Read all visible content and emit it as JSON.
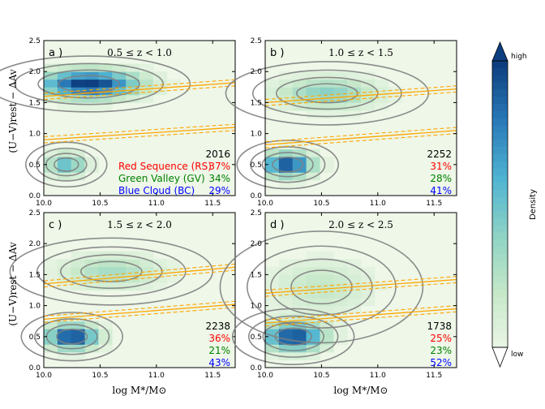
{
  "figure": {
    "ylabel": "(U−V)rest − ΔAv",
    "xlabel": "log M*/M⊙",
    "colorbar": {
      "label": "Density",
      "high": "high",
      "low": "low"
    },
    "colors": {
      "rs": "#ff0000",
      "gv": "#008000",
      "bc": "#0000ff",
      "contour": "#808080",
      "fit": "#ffa500",
      "background": "#eef7e8"
    }
  },
  "chart_data": [
    {
      "type": "heatmap",
      "panel": "a )",
      "title": "0.5 ≤ z < 1.0",
      "xlim": [
        10.0,
        11.7
      ],
      "ylim": [
        0.0,
        2.5
      ],
      "xticks": [
        "10.0",
        "10.5",
        "11.0",
        "11.5"
      ],
      "yticks": [
        "0.0",
        "0.5",
        "1.0",
        "1.5",
        "2.0",
        "2.5"
      ],
      "total": "2016",
      "legend": [
        {
          "label": "Red Sequence (RS)",
          "pct": "37%",
          "group": "rs"
        },
        {
          "label": "Green Valley (GV)",
          "pct": "34%",
          "group": "gv"
        },
        {
          "label": "Blue Cloud (BC)",
          "pct": "29%",
          "group": "bc"
        }
      ],
      "boundaries": {
        "upper": {
          "y0": 1.6,
          "y1": 1.82
        },
        "lower": {
          "y0": 0.9,
          "y1": 1.1
        }
      },
      "blobs": [
        {
          "x": 10.4,
          "y": 1.8,
          "sx": 0.3,
          "sy": 0.15,
          "a": 1.0
        },
        {
          "x": 10.2,
          "y": 0.5,
          "sx": 0.12,
          "sy": 0.12,
          "a": 0.55
        }
      ]
    },
    {
      "type": "heatmap",
      "panel": "b )",
      "title": "1.0 ≤ z < 1.5",
      "xlim": [
        10.0,
        11.7
      ],
      "ylim": [
        0.0,
        2.5
      ],
      "xticks": [
        "10.0",
        "10.5",
        "11.0",
        "11.5"
      ],
      "yticks": [
        "0.0",
        "0.5",
        "1.0",
        "1.5",
        "2.0",
        "2.5"
      ],
      "total": "2252",
      "legend": [
        {
          "label": "",
          "pct": "31%",
          "group": "rs"
        },
        {
          "label": "",
          "pct": "28%",
          "group": "gv"
        },
        {
          "label": "",
          "pct": "41%",
          "group": "bc"
        }
      ],
      "boundaries": {
        "upper": {
          "y0": 1.5,
          "y1": 1.72
        },
        "lower": {
          "y0": 0.82,
          "y1": 1.05
        }
      },
      "blobs": [
        {
          "x": 10.55,
          "y": 1.65,
          "sx": 0.3,
          "sy": 0.17,
          "a": 0.4
        },
        {
          "x": 10.2,
          "y": 0.5,
          "sx": 0.15,
          "sy": 0.13,
          "a": 0.95
        }
      ]
    },
    {
      "type": "heatmap",
      "panel": "c )",
      "title": "1.5 ≤ z < 2.0",
      "xlim": [
        10.0,
        11.7
      ],
      "ylim": [
        0.0,
        2.5
      ],
      "xticks": [
        "10.0",
        "10.5",
        "11.0",
        "11.5"
      ],
      "yticks": [
        "0.0",
        "0.5",
        "1.0",
        "1.5",
        "2.0",
        "2.5"
      ],
      "total": "2238",
      "legend": [
        {
          "label": "",
          "pct": "36%",
          "group": "rs"
        },
        {
          "label": "",
          "pct": "21%",
          "group": "gv"
        },
        {
          "label": "",
          "pct": "43%",
          "group": "bc"
        }
      ],
      "boundaries": {
        "upper": {
          "y0": 1.35,
          "y1": 1.62
        },
        "lower": {
          "y0": 0.78,
          "y1": 1.02
        }
      },
      "blobs": [
        {
          "x": 10.6,
          "y": 1.55,
          "sx": 0.3,
          "sy": 0.18,
          "a": 0.3
        },
        {
          "x": 10.25,
          "y": 0.5,
          "sx": 0.15,
          "sy": 0.13,
          "a": 1.0
        }
      ]
    },
    {
      "type": "heatmap",
      "panel": "d )",
      "title": "2.0 ≤ z < 2.5",
      "xlim": [
        10.0,
        11.7
      ],
      "ylim": [
        0.0,
        2.5
      ],
      "xticks": [
        "10.0",
        "10.5",
        "11.0",
        "11.5"
      ],
      "yticks": [
        "0.0",
        "0.5",
        "1.0",
        "1.5",
        "2.0",
        "2.5"
      ],
      "total": "1738",
      "legend": [
        {
          "label": "",
          "pct": "25%",
          "group": "rs"
        },
        {
          "label": "",
          "pct": "23%",
          "group": "gv"
        },
        {
          "label": "",
          "pct": "52%",
          "group": "bc"
        }
      ],
      "boundaries": {
        "upper": {
          "y0": 1.2,
          "y1": 1.42
        },
        "lower": {
          "y0": 0.72,
          "y1": 0.95
        }
      },
      "blobs": [
        {
          "x": 10.5,
          "y": 1.3,
          "sx": 0.3,
          "sy": 0.3,
          "a": 0.2
        },
        {
          "x": 10.25,
          "y": 0.5,
          "sx": 0.18,
          "sy": 0.15,
          "a": 0.95
        }
      ]
    }
  ]
}
